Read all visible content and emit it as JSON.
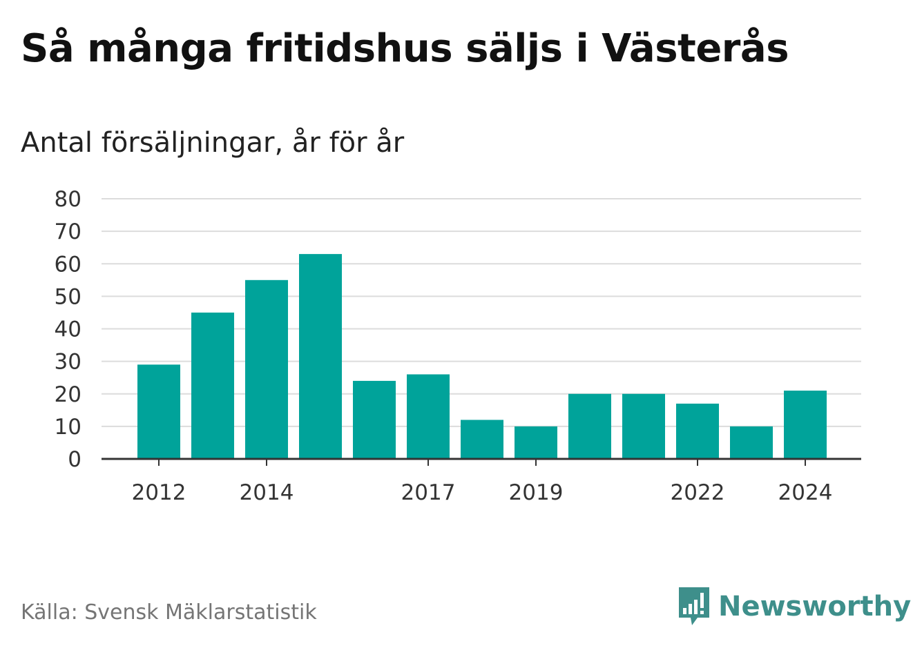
{
  "title": "Så många fritidshus säljs i Västerås",
  "subtitle": "Antal försäljningar, år för år",
  "source": "Källa: Svensk Mäklarstatistik",
  "brand": {
    "name": "Newsworthy",
    "icon": "newsworthy-logo-icon"
  },
  "colors": {
    "bar": "#00a39a",
    "grid": "#dcdcdc",
    "axis": "#333333",
    "brand": "#3e8f8b"
  },
  "chart_data": {
    "type": "bar",
    "categories": [
      "2012",
      "2013",
      "2014",
      "2015",
      "2016",
      "2017",
      "2018",
      "2019",
      "2020",
      "2021",
      "2022",
      "2023",
      "2024"
    ],
    "values": [
      29,
      45,
      55,
      63,
      24,
      26,
      12,
      10,
      20,
      20,
      17,
      10,
      21
    ],
    "x_tick_labels": [
      "2012",
      "2014",
      "2017",
      "2019",
      "2022",
      "2024"
    ],
    "y_ticks": [
      0,
      10,
      20,
      30,
      40,
      50,
      60,
      70,
      80
    ],
    "ylim": [
      0,
      80
    ],
    "grid": true
  }
}
